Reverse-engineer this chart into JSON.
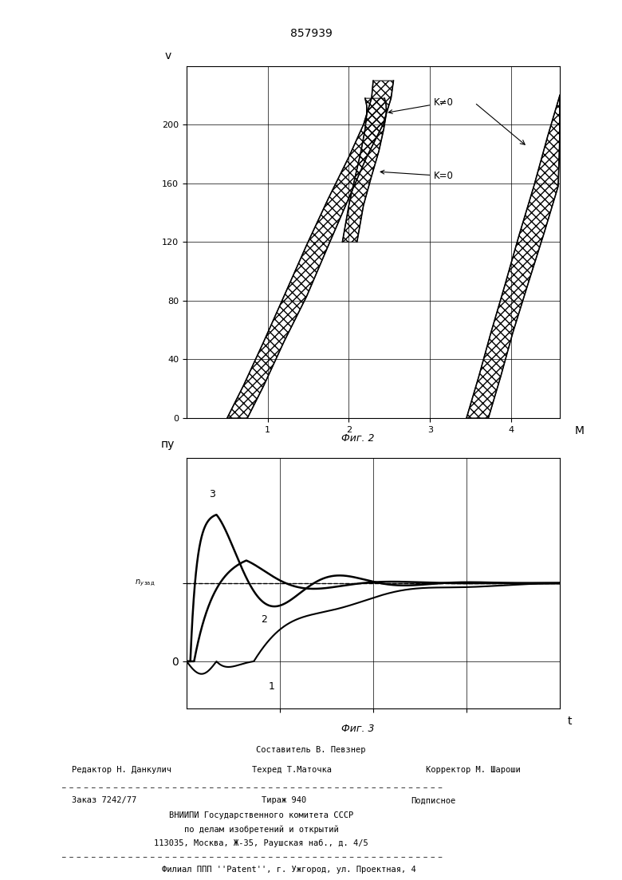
{
  "page_title": "857939",
  "fig2_title": "Фиг. 2",
  "fig3_title": "Фиг. 3",
  "fig2_xlabel": "M",
  "fig2_ylabel": "v",
  "fig2_yticks": [
    0,
    40,
    80,
    120,
    160,
    200
  ],
  "fig2_xticks": [
    1,
    2,
    3,
    4
  ],
  "fig3_xlabel": "t",
  "fig3_ylabel": "пу",
  "label_K_neq_0": "K≠0",
  "label_K_eq_0": "K=0",
  "footer_line1": "Составитель В. Певзнер",
  "footer_line2_left": "Редактор Н. Данкулич",
  "footer_line2_mid": "Техред Т.Маточка",
  "footer_line2_right": "Корректор М. Шароши",
  "footer_line3_left": "Заказ 7242/77",
  "footer_line3_mid": "Тираж 940",
  "footer_line3_right": "Подписное",
  "footer_line4": "ВНИИПИ Государственного комитета СССР",
  "footer_line5": "по делам изобретений и открытий",
  "footer_line6": "113035, Москва, Ж-35, Раушская наб., д. 4/5",
  "footer_line7": "Филиал ППП ''Patent'', г. Ужгород, ул. Проектная, 4",
  "bg_color": "#ffffff",
  "line_color": "#000000"
}
